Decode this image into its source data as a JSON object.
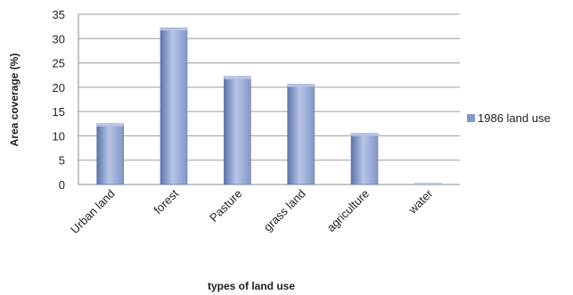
{
  "chart_data": {
    "type": "bar",
    "categories": [
      "Urban land",
      "forest",
      "Pasture",
      "grass land",
      "agriculture",
      "water"
    ],
    "series": [
      {
        "name": "1986 land use",
        "values": [
          12.5,
          32.2,
          22.2,
          20.6,
          10.5,
          0.2
        ]
      }
    ],
    "title": "",
    "xlabel": "types of land use",
    "ylabel": "Area coverage  (%)",
    "ylim": [
      0,
      35
    ],
    "yticks": [
      0,
      5,
      10,
      15,
      20,
      25,
      30,
      35
    ],
    "grid": true,
    "legend_position": "right",
    "colors": {
      "bar": "#8497c9",
      "bar_light": "#b7c4e4",
      "bar_dark": "#5d74ad"
    }
  }
}
